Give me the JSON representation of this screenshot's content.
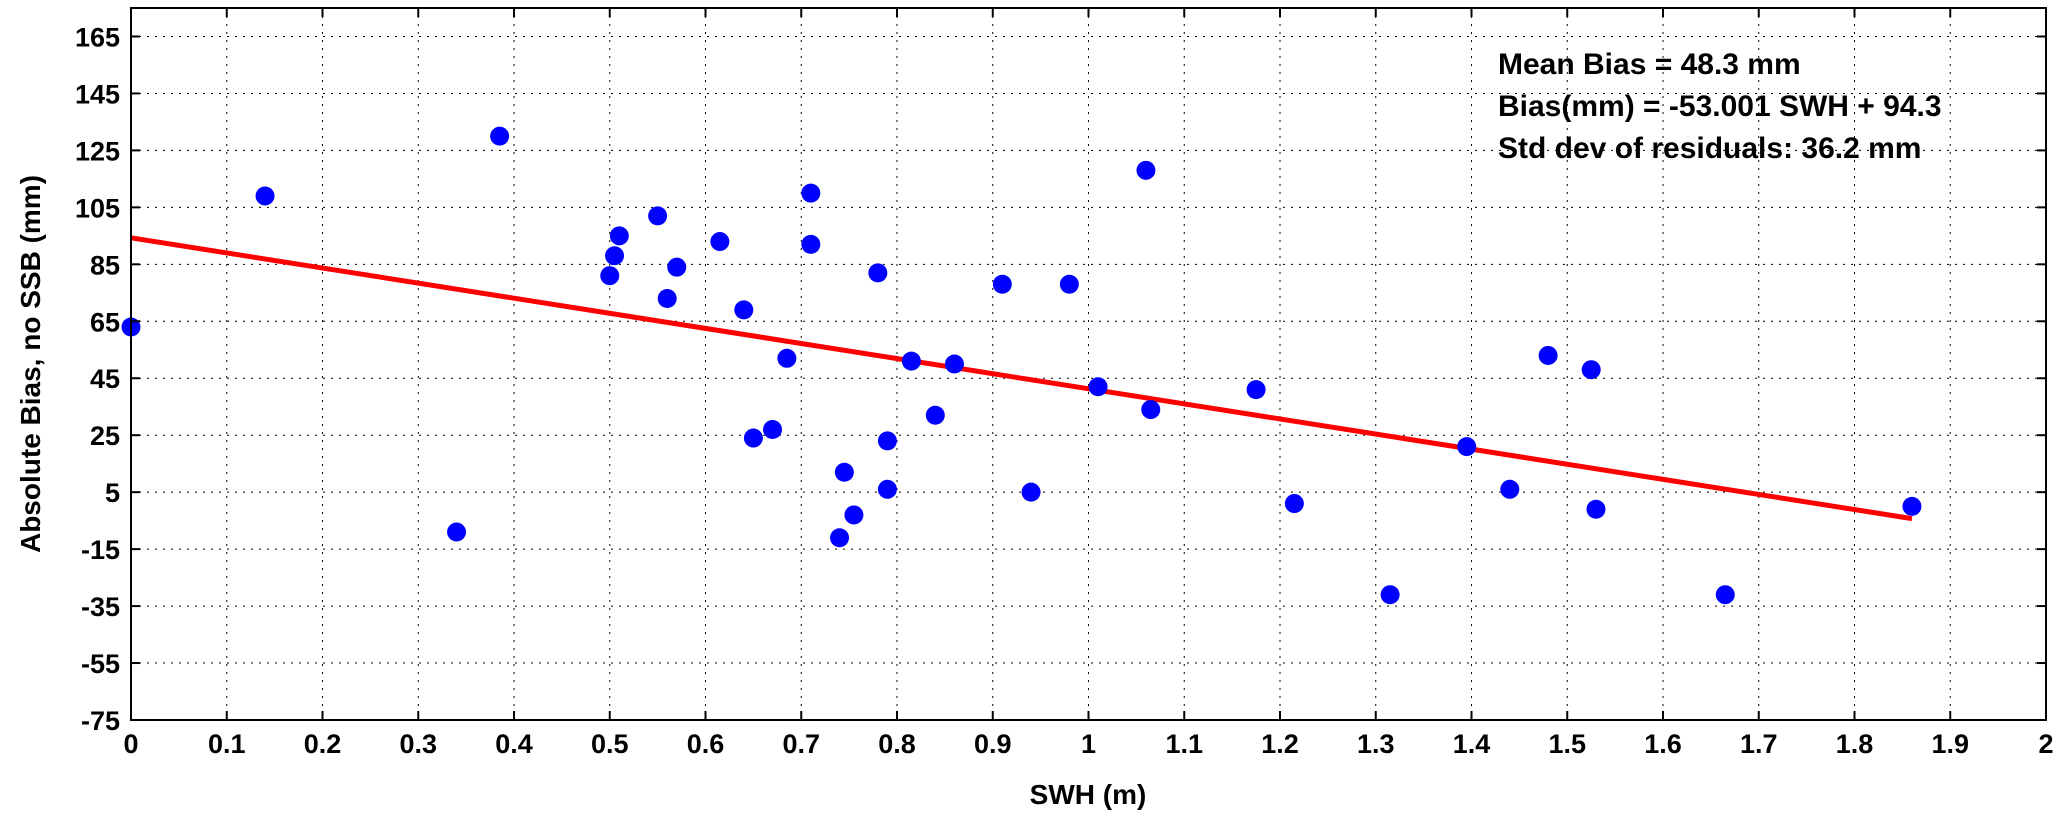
{
  "chart_data": {
    "type": "scatter",
    "title": "",
    "xlabel": "SWH (m)",
    "ylabel": "Absolute Bias, no SSB (mm)",
    "xlim": [
      0,
      2
    ],
    "ylim": [
      -75,
      175
    ],
    "xticks": [
      0,
      0.1,
      0.2,
      0.3,
      0.4,
      0.5,
      0.6,
      0.7,
      0.8,
      0.9,
      1,
      1.1,
      1.2,
      1.3,
      1.4,
      1.5,
      1.6,
      1.7,
      1.8,
      1.9,
      2
    ],
    "xtick_labels": [
      "0",
      "0.1",
      "0.2",
      "0.3",
      "0.4",
      "0.5",
      "0.6",
      "0.7",
      "0.8",
      "0.9",
      "1",
      "1.1",
      "1.2",
      "1.3",
      "1.4",
      "1.5",
      "1.6",
      "1.7",
      "1.8",
      "1.9",
      "2"
    ],
    "yticks": [
      -75,
      -55,
      -35,
      -15,
      5,
      25,
      45,
      65,
      85,
      105,
      125,
      145,
      165
    ],
    "ytick_labels": [
      "-75",
      "-55",
      "-35",
      "-15",
      "5",
      "25",
      "45",
      "65",
      "85",
      "105",
      "125",
      "145",
      "165"
    ],
    "grid": true,
    "marker_color": "#0000ff",
    "fit_color": "#ff0000",
    "series": [
      {
        "x": [
          0.0,
          0.14,
          0.34,
          0.385,
          0.5,
          0.505,
          0.51,
          0.55,
          0.56,
          0.57,
          0.615,
          0.64,
          0.65,
          0.67,
          0.685,
          0.71,
          0.71,
          0.74,
          0.745,
          0.755,
          0.78,
          0.79,
          0.79,
          0.815,
          0.84,
          0.86,
          0.91,
          0.94,
          0.98,
          1.01,
          1.06,
          1.065,
          1.175,
          1.215,
          1.315,
          1.395,
          1.44,
          1.48,
          1.525,
          1.53,
          1.665,
          1.86
        ],
        "y": [
          63,
          109,
          -9,
          130,
          81,
          88,
          95,
          102,
          73,
          84,
          93,
          69,
          24,
          27,
          52,
          110,
          92,
          -11,
          12,
          -3,
          82,
          6,
          23,
          51,
          32,
          50,
          78,
          5,
          78,
          42,
          118,
          34,
          41,
          1,
          -31,
          21,
          6,
          53,
          48,
          -1,
          -31,
          0
        ]
      }
    ],
    "fit_line": {
      "slope": -53.001,
      "intercept": 94.3,
      "x_range": [
        0,
        1.86
      ]
    },
    "annotations": [
      "Mean Bias = 48.3 mm",
      "Bias(mm) = -53.001 SWH + 94.3",
      "Std dev of residuals: 36.2 mm"
    ]
  }
}
